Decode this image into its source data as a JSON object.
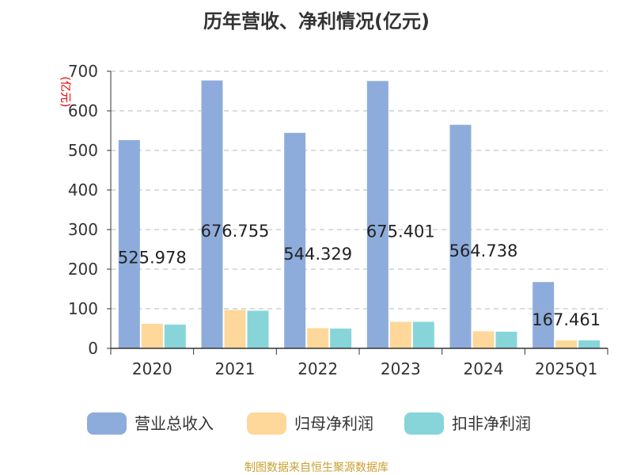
{
  "chart_data": {
    "type": "bar",
    "title": "历年营收、净利情况(亿元)",
    "ylabel": "(亿元)",
    "categories": [
      "2020",
      "2021",
      "2022",
      "2023",
      "2024",
      "2025Q1"
    ],
    "series": [
      {
        "name": "营业总收入",
        "values": [
          525.978,
          676.755,
          544.329,
          675.401,
          564.738,
          167.461
        ],
        "color": "#8eacdb"
      },
      {
        "name": "归母净利润",
        "values": [
          62,
          97,
          51,
          67,
          43,
          20
        ],
        "color": "#fed89a"
      },
      {
        "name": "扣非净利润",
        "values": [
          60,
          95,
          50,
          67,
          42,
          20
        ],
        "color": "#87d5d8"
      }
    ],
    "data_labels": [
      "525.978",
      "676.755",
      "544.329",
      "675.401",
      "564.738",
      "167.461"
    ],
    "ylim": [
      0,
      700
    ],
    "yticks": [
      "0",
      "100",
      "200",
      "300",
      "400",
      "500",
      "600",
      "700"
    ],
    "grid": true,
    "legend_position": "bottom"
  },
  "source": "制图数据来自恒生聚源数据库"
}
